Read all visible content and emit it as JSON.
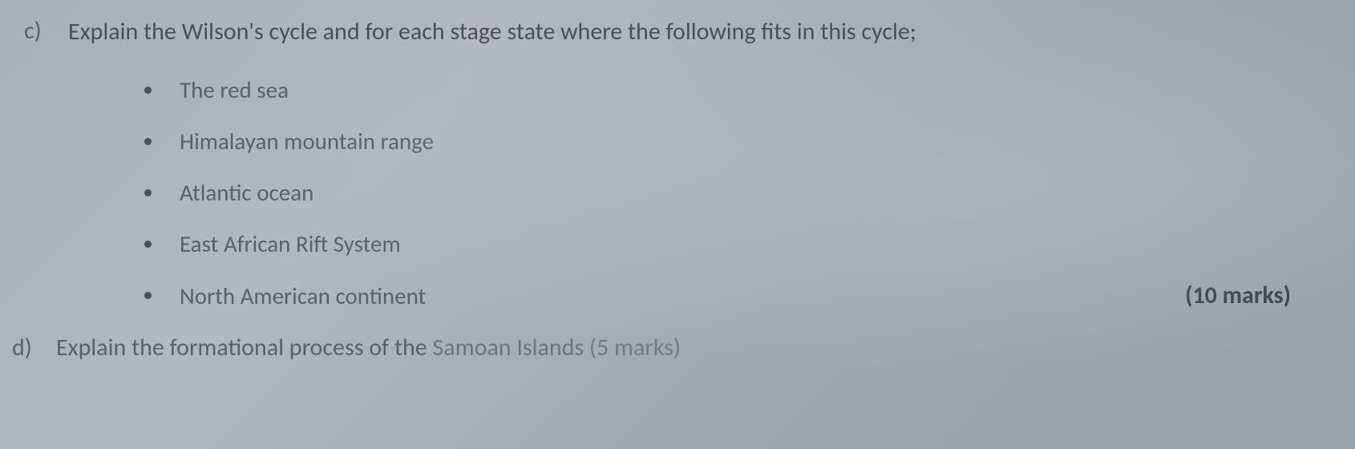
{
  "question_c": {
    "label": "c)",
    "text": "Explain the Wilson's cycle and for each stage state where the following fits in this cycle;",
    "bullets": [
      "The red sea",
      "Himalayan mountain range",
      "Atlantic ocean",
      "East African Rift System",
      "North American continent"
    ],
    "marks": "(10 marks)"
  },
  "question_d": {
    "label": "d)",
    "text_part1": "Explain the formational process of the ",
    "text_part2": "Samoan Islands ",
    "marks": "(5 marks)"
  },
  "styling": {
    "background_color": "#a8b0b8",
    "text_color": "#4a5058",
    "font_family": "Calibri",
    "question_fontsize": 30,
    "bullet_fontsize": 29,
    "bullet_dot_color": "#4a5058",
    "bullet_dot_size": 9,
    "marks_fontweight": 600
  }
}
